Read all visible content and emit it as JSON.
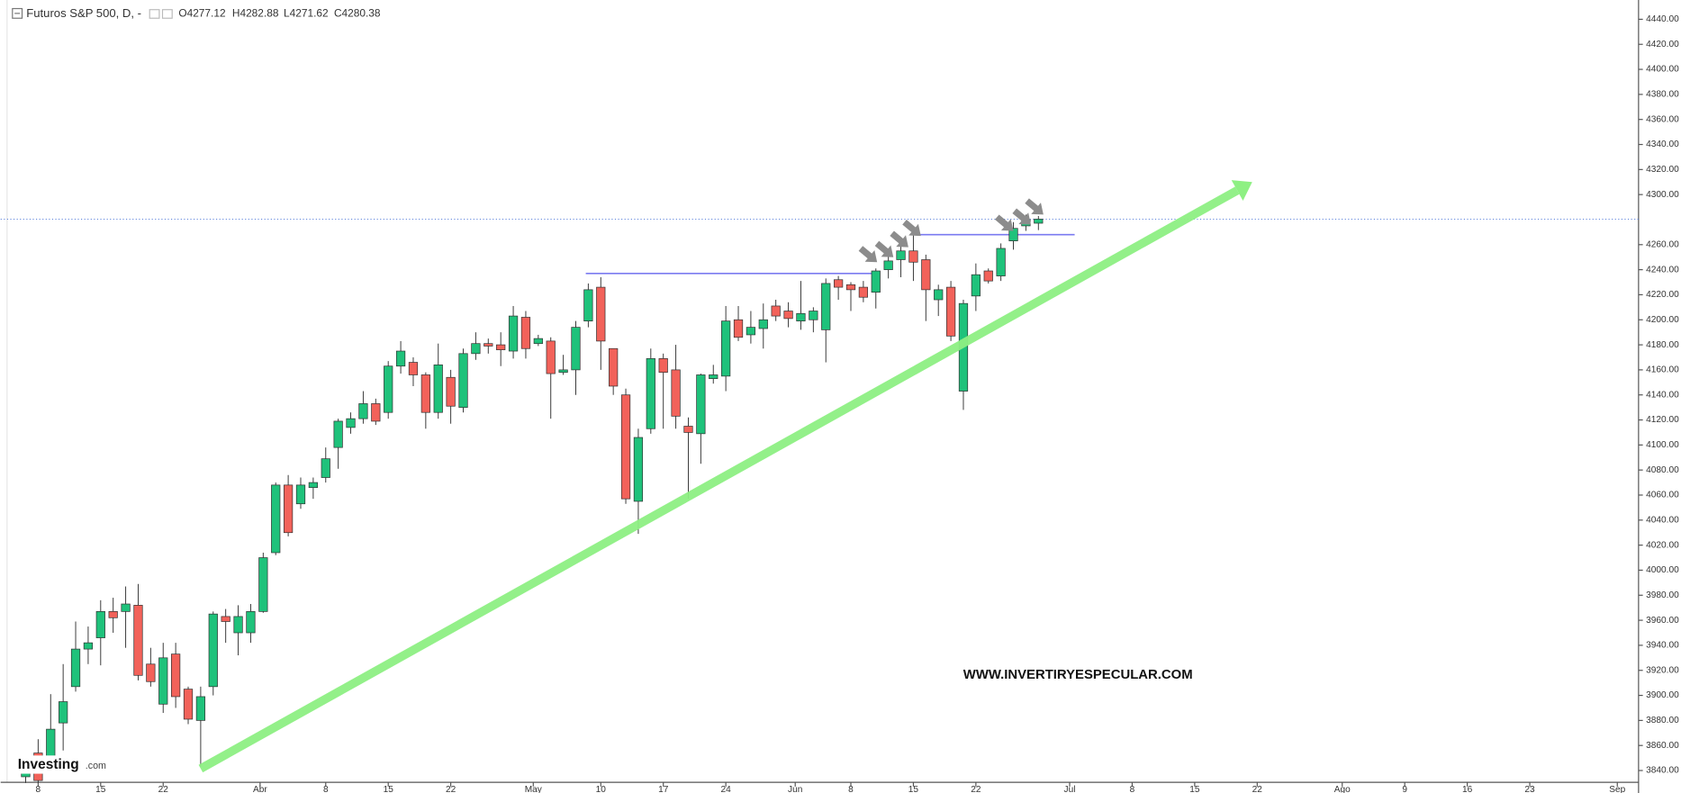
{
  "chart_data": {
    "type": "candlestick",
    "title": "Futuros S&P 500, D, -",
    "ohlc_labels": [
      "O4277.12",
      "H4282.88",
      "L4271.62",
      "C4280.38"
    ],
    "open": [
      3835,
      3854,
      3845,
      3878,
      3907,
      3937,
      3946,
      3967,
      3967,
      3972,
      3925,
      3893,
      3933,
      3905,
      3880,
      3907,
      3963,
      3950,
      3950,
      3967,
      4014,
      4068,
      4053,
      4066,
      4074,
      4098,
      4114,
      4121,
      4133,
      4126,
      4163,
      4166,
      4156,
      4126,
      4154,
      4130,
      4173,
      4181,
      4180,
      4175,
      4202,
      4181,
      4183,
      4158,
      4160,
      4199,
      4226,
      4177,
      4140,
      4055,
      4113,
      4169,
      4160,
      4115,
      4109,
      4153,
      4155,
      4200,
      4188,
      4193,
      4211,
      4207,
      4199,
      4200,
      4192,
      4232,
      4228,
      4226,
      4222,
      4240,
      4248,
      4255,
      4248,
      4216,
      4226,
      4143,
      4219,
      4239,
      4235,
      4263,
      4275,
      4277.12
    ],
    "high": [
      3845,
      3865,
      3901,
      3925,
      3959,
      3955,
      3976,
      3978,
      3987,
      3989,
      3938,
      3942,
      3942,
      3907,
      3907,
      3967,
      3969,
      3972,
      3973,
      4014,
      4070,
      4076,
      4074,
      4074,
      4098,
      4121,
      4126,
      4143,
      4137,
      4167,
      4183,
      4170,
      4158,
      4181,
      4160,
      4177,
      4190,
      4185,
      4190,
      4211,
      4207,
      4188,
      4186,
      4172,
      4199,
      4229,
      4234,
      4177,
      4145,
      4113,
      4177,
      4173,
      4180,
      4122,
      4157,
      4164,
      4211,
      4211,
      4207,
      4213,
      4216,
      4214,
      4231,
      4210,
      4233,
      4235,
      4230,
      4231,
      4241,
      4252,
      4260,
      4270,
      4252,
      4228,
      4231,
      4216,
      4245,
      4241,
      4261,
      4278,
      4284,
      4282.88
    ],
    "low": [
      3830,
      3830,
      3838,
      3856,
      3903,
      3925,
      3924,
      3950,
      3938,
      3912,
      3907,
      3886,
      3890,
      3877,
      3843,
      3900,
      3942,
      3932,
      3942,
      3966,
      4012,
      4027,
      4049,
      4057,
      4070,
      4081,
      4109,
      4117,
      4116,
      4121,
      4157,
      4147,
      4113,
      4121,
      4117,
      4126,
      4168,
      4173,
      4163,
      4169,
      4169,
      4179,
      4121,
      4156,
      4140,
      4194,
      4160,
      4140,
      4053,
      4029,
      4109,
      4113,
      4113,
      4057,
      4085,
      4149,
      4143,
      4183,
      4181,
      4177,
      4199,
      4194,
      4192,
      4190,
      4166,
      4216,
      4207,
      4214,
      4209,
      4233,
      4234,
      4231,
      4199,
      4203,
      4183,
      4128,
      4207,
      4229,
      4231,
      4256,
      4271,
      4271.62
    ],
    "close": [
      3842,
      3832,
      3873,
      3895,
      3937,
      3942,
      3967,
      3962,
      3973,
      3916,
      3911,
      3930,
      3899,
      3881,
      3899,
      3965,
      3959,
      3963,
      3967,
      4010,
      4068,
      4030,
      4068,
      4070,
      4089,
      4119,
      4121,
      4133,
      4119,
      4163,
      4175,
      4156,
      4126,
      4164,
      4131,
      4173,
      4181,
      4179,
      4176,
      4203,
      4177,
      4185,
      4157,
      4160,
      4194,
      4224,
      4183,
      4147,
      4057,
      4106,
      4169,
      4158,
      4123,
      4110,
      4156,
      4156,
      4199,
      4186,
      4194,
      4200,
      4203,
      4201,
      4205,
      4207,
      4229,
      4226,
      4224,
      4218,
      4239,
      4247,
      4255,
      4246,
      4224,
      4224,
      4187,
      4213,
      4236,
      4231,
      4257,
      4273,
      4280,
      4280.38
    ],
    "up_color": "#1fc27b",
    "down_color": "#f2625a",
    "xlim": [
      -2,
      129
    ],
    "xticks": [
      {
        "value": 1,
        "label": "8"
      },
      {
        "value": 6,
        "label": "15"
      },
      {
        "value": 11,
        "label": "22"
      },
      {
        "value": 18.75,
        "label": "Abr"
      },
      {
        "value": 24,
        "label": "8"
      },
      {
        "value": 29,
        "label": "15"
      },
      {
        "value": 34,
        "label": "22"
      },
      {
        "value": 40.6,
        "label": "May"
      },
      {
        "value": 46,
        "label": "10"
      },
      {
        "value": 51,
        "label": "17"
      },
      {
        "value": 56,
        "label": "24"
      },
      {
        "value": 61.55,
        "label": "Jun"
      },
      {
        "value": 66,
        "label": "8"
      },
      {
        "value": 71,
        "label": "15"
      },
      {
        "value": 76,
        "label": "22"
      },
      {
        "value": 83.5,
        "label": "Jul"
      },
      {
        "value": 88.5,
        "label": "8"
      },
      {
        "value": 93.5,
        "label": "15"
      },
      {
        "value": 98.5,
        "label": "22"
      },
      {
        "value": 105.3,
        "label": "Ago"
      },
      {
        "value": 110.3,
        "label": "9"
      },
      {
        "value": 115.3,
        "label": "16"
      },
      {
        "value": 120.3,
        "label": "23"
      },
      {
        "value": 127.3,
        "label": "Sep"
      }
    ],
    "ylim": [
      3830.6,
      4455.4
    ],
    "yticks": [
      {
        "value": 3840,
        "label": "3840.00"
      },
      {
        "value": 3860,
        "label": "3860.00"
      },
      {
        "value": 3880,
        "label": "3880.00"
      },
      {
        "value": 3900,
        "label": "3900.00"
      },
      {
        "value": 3920,
        "label": "3920.00"
      },
      {
        "value": 3940,
        "label": "3940.00"
      },
      {
        "value": 3960,
        "label": "3960.00"
      },
      {
        "value": 3980,
        "label": "3980.00"
      },
      {
        "value": 4000,
        "label": "4000.00"
      },
      {
        "value": 4020,
        "label": "4020.00"
      },
      {
        "value": 4040,
        "label": "4040.00"
      },
      {
        "value": 4060,
        "label": "4060.00"
      },
      {
        "value": 4080,
        "label": "4080.00"
      },
      {
        "value": 4100,
        "label": "4100.00"
      },
      {
        "value": 4120,
        "label": "4120.00"
      },
      {
        "value": 4140,
        "label": "4140.00"
      },
      {
        "value": 4160,
        "label": "4160.00"
      },
      {
        "value": 4180,
        "label": "4180.00"
      },
      {
        "value": 4200,
        "label": "4200.00"
      },
      {
        "value": 4220,
        "label": "4220.00"
      },
      {
        "value": 4240,
        "label": "4240.00"
      },
      {
        "value": 4260,
        "label": "4260.00"
      },
      {
        "value": 4300,
        "label": "4300.00"
      },
      {
        "value": 4320,
        "label": "4320.00"
      },
      {
        "value": 4340,
        "label": "4340.00"
      },
      {
        "value": 4360,
        "label": "4360.00"
      },
      {
        "value": 4380,
        "label": "4380.00"
      },
      {
        "value": 4400,
        "label": "4400.00"
      },
      {
        "value": 4420,
        "label": "4420.00"
      },
      {
        "value": 4440,
        "label": "4440.00"
      }
    ],
    "last_price": 4280.38,
    "levels": [
      {
        "value": 4237,
        "x": [
          44.8,
          68.3
        ]
      },
      {
        "value": 4268,
        "x": [
          71.3,
          83.9
        ]
      }
    ],
    "trend_line": {
      "x": [
        14.0,
        98.1
      ],
      "y": [
        3841.5,
        4310
      ]
    },
    "arrows": [
      {
        "x": 68.1,
        "y": 4246
      },
      {
        "x": 69.4,
        "y": 4250
      },
      {
        "x": 70.6,
        "y": 4258
      },
      {
        "x": 71.6,
        "y": 4267
      },
      {
        "x": 79.0,
        "y": 4271
      },
      {
        "x": 80.4,
        "y": 4276
      },
      {
        "x": 81.4,
        "y": 4284
      }
    ],
    "watermark": "WWW.INVERTIRYESPECULAR.COM",
    "logo": "Investing",
    "logo_suffix": ".com"
  }
}
